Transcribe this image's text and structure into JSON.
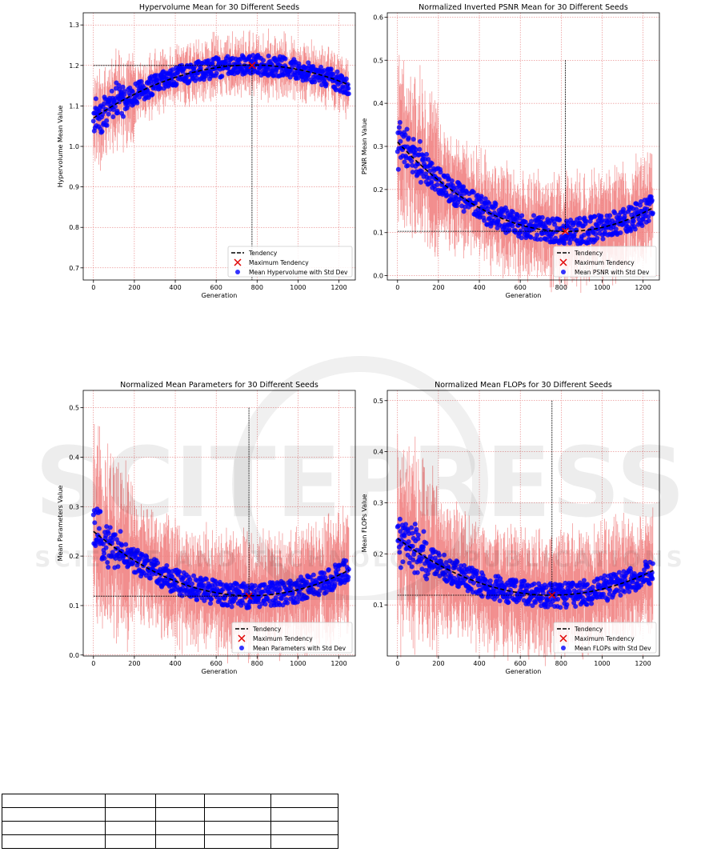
{
  "chart_data": [
    {
      "type": "scatter",
      "title": "Hypervolume Mean for 30 Different Seeds",
      "xlabel": "Generation",
      "ylabel": "Hypervolume Mean Value",
      "xlim": [
        -50,
        1280
      ],
      "ylim": [
        0.67,
        1.33
      ],
      "xticks": [
        0,
        200,
        400,
        600,
        800,
        1000,
        1200
      ],
      "yticks": [
        0.7,
        0.8,
        0.9,
        1.0,
        1.1,
        1.2,
        1.3
      ],
      "grid": true,
      "legend_position": "bottom-right",
      "legend": [
        "Tendency",
        "Maximum Tendency",
        "Mean Hypervolume with Std Dev"
      ],
      "generations": 1250,
      "tendency_poly": [
        1.07,
        0.000338,
        -2.18e-07
      ],
      "max_tendency": {
        "x": 775,
        "y": 1.2
      },
      "reference_lines": {
        "hline_y": 1.2,
        "vline_x": 775
      },
      "noise": 0.025,
      "err": 0.04,
      "series_color": "#0000ff",
      "errbar_color": "#f08080"
    },
    {
      "type": "scatter",
      "title": "Normalized Inverted PSNR Mean for 30 Different Seeds",
      "xlabel": "Generation",
      "ylabel": "PSNR Mean Value",
      "xlim": [
        -50,
        1280
      ],
      "ylim": [
        -0.01,
        0.61
      ],
      "xticks": [
        0,
        200,
        400,
        600,
        800,
        1000,
        1200
      ],
      "yticks": [
        0.0,
        0.1,
        0.2,
        0.3,
        0.4,
        0.5,
        0.6
      ],
      "grid": true,
      "legend_position": "bottom-right",
      "legend": [
        "Tendency",
        "Maximum Tendency",
        "Mean PSNR with Std Dev"
      ],
      "generations": 1250,
      "tendency_poly": [
        0.31,
        -0.000503,
        3.05e-07
      ],
      "max_tendency": {
        "x": 820,
        "y": 0.103
      },
      "reference_lines": {
        "hline_y": 0.103,
        "vline_x": 820,
        "vline_top": 0.5
      },
      "noise": 0.03,
      "err": 0.07,
      "series_color": "#0000ff",
      "errbar_color": "#f08080"
    },
    {
      "type": "scatter",
      "title": "Normalized Mean Parameters for 30 Different Seeds",
      "xlabel": "Generation",
      "ylabel": "Mean Parameters Value",
      "xlim": [
        -50,
        1280
      ],
      "ylim": [
        -0.002,
        0.535
      ],
      "xticks": [
        0,
        200,
        400,
        600,
        800,
        1000,
        1200
      ],
      "yticks": [
        0.0,
        0.1,
        0.2,
        0.3,
        0.4,
        0.5
      ],
      "grid": true,
      "legend_position": "bottom-right",
      "legend": [
        "Tendency",
        "Maximum Tendency",
        "Mean Parameters with Std Dev"
      ],
      "generations": 1250,
      "tendency_poly": [
        0.25,
        -0.00034,
        2.22e-07
      ],
      "max_tendency": {
        "x": 760,
        "y": 0.119
      },
      "reference_lines": {
        "hline_y": 0.119,
        "vline_x": 760,
        "vline_top": 0.5
      },
      "noise": 0.025,
      "err": 0.07,
      "series_color": "#0000ff",
      "errbar_color": "#f08080"
    },
    {
      "type": "scatter",
      "title": "Normalized Mean FLOPs for 30 Different Seeds",
      "xlabel": "Generation",
      "ylabel": "Mean FLOPs Value",
      "xlim": [
        -50,
        1280
      ],
      "ylim": [
        0.0,
        0.52
      ],
      "xticks": [
        0,
        200,
        400,
        600,
        800,
        1000,
        1200
      ],
      "yticks": [
        0.1,
        0.2,
        0.3,
        0.4,
        0.5
      ],
      "grid": true,
      "legend_position": "bottom-right",
      "legend": [
        "Tendency",
        "Maximum Tendency",
        "Mean FLOPs with Std Dev"
      ],
      "generations": 1250,
      "tendency_poly": [
        0.23,
        -0.000295,
        1.96e-07
      ],
      "max_tendency": {
        "x": 755,
        "y": 0.119
      },
      "reference_lines": {
        "hline_y": 0.119,
        "vline_x": 755,
        "vline_top": 0.5
      },
      "noise": 0.025,
      "err": 0.07,
      "series_color": "#0000ff",
      "errbar_color": "#f08080"
    }
  ],
  "watermark": {
    "word": "SCITEPRESS",
    "tagline": "SCIENCE AND TECHNOLOGY PUBLICATIONS"
  },
  "table": {
    "rows": 4,
    "cols": 5
  }
}
